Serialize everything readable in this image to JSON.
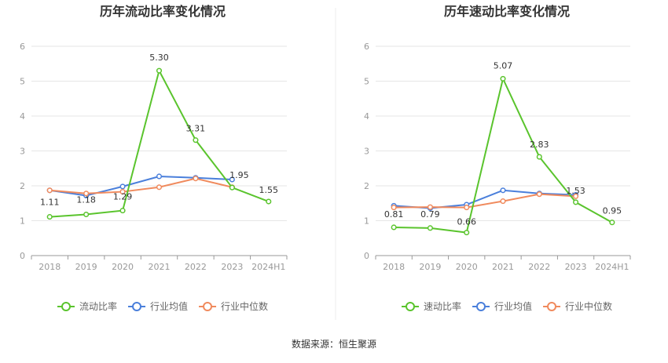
{
  "source_note": "数据来源：恒生聚源",
  "chart_data": [
    {
      "type": "line",
      "title": "历年流动比率变化情况",
      "categories": [
        "2018",
        "2019",
        "2020",
        "2021",
        "2022",
        "2023",
        "2024H1"
      ],
      "ylim": [
        0,
        6
      ],
      "yticks": [
        "0",
        "1",
        "2",
        "3",
        "4",
        "5",
        "6"
      ],
      "grid": true,
      "legend_position": "bottom",
      "series": [
        {
          "name": "流动比率",
          "color": "#5ac42d",
          "values": [
            1.11,
            1.18,
            1.29,
            5.3,
            3.31,
            1.95,
            1.55
          ],
          "labels": [
            "1.11",
            "1.18",
            "1.29",
            "5.30",
            "3.31",
            "1.95",
            "1.55"
          ]
        },
        {
          "name": "行业均值",
          "color": "#4a7fdb",
          "values": [
            1.87,
            1.72,
            1.98,
            2.27,
            2.23,
            2.18,
            null
          ]
        },
        {
          "name": "行业中位数",
          "color": "#f08a5d",
          "values": [
            1.87,
            1.78,
            1.83,
            1.96,
            2.21,
            1.96,
            null
          ]
        }
      ]
    },
    {
      "type": "line",
      "title": "历年速动比率变化情况",
      "categories": [
        "2018",
        "2019",
        "2020",
        "2021",
        "2022",
        "2023",
        "2024H1"
      ],
      "ylim": [
        0,
        6
      ],
      "yticks": [
        "0",
        "1",
        "2",
        "3",
        "4",
        "5",
        "6"
      ],
      "grid": true,
      "legend_position": "bottom",
      "series": [
        {
          "name": "速动比率",
          "color": "#5ac42d",
          "values": [
            0.81,
            0.79,
            0.66,
            5.07,
            2.83,
            1.53,
            0.95
          ],
          "labels": [
            "0.81",
            "0.79",
            "0.66",
            "5.07",
            "2.83",
            "1.53",
            "0.95"
          ]
        },
        {
          "name": "行业均值",
          "color": "#4a7fdb",
          "values": [
            1.43,
            1.36,
            1.46,
            1.87,
            1.78,
            1.74,
            null
          ]
        },
        {
          "name": "行业中位数",
          "color": "#f08a5d",
          "values": [
            1.38,
            1.39,
            1.38,
            1.56,
            1.76,
            1.7,
            null
          ]
        }
      ]
    }
  ]
}
